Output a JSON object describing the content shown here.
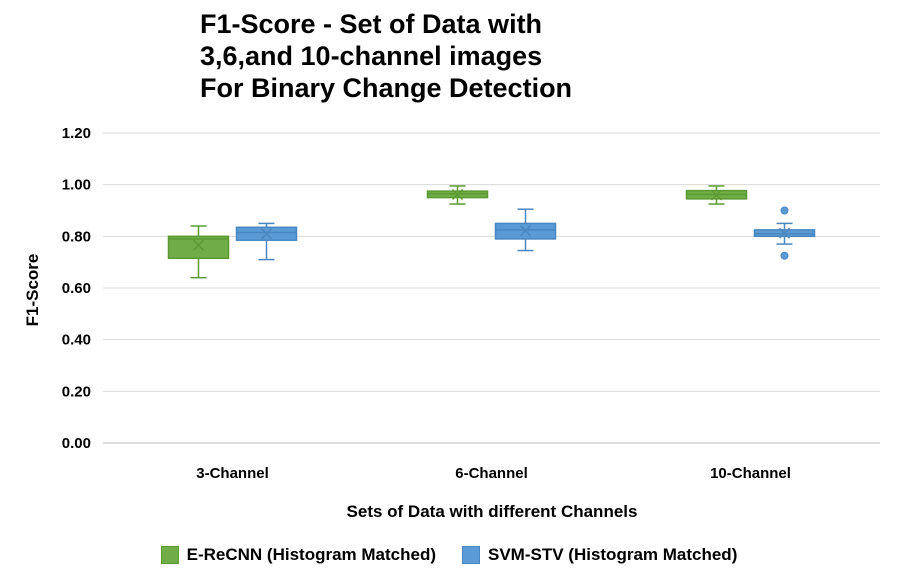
{
  "chart_data": {
    "type": "box",
    "title_lines": [
      "F1-Score - Set of Data with",
      "3,6,and 10-channel images",
      "For Binary Change Detection"
    ],
    "xlabel": "Sets of Data with different Channels",
    "ylabel": "F1-Score",
    "ylim": [
      0,
      1.2
    ],
    "yticks": [
      "0.00",
      "0.20",
      "0.40",
      "0.60",
      "0.80",
      "1.00",
      "1.20"
    ],
    "grid": true,
    "legend_position": "bottom",
    "categories": [
      "3-Channel",
      "6-Channel",
      "10-Channel"
    ],
    "series": [
      {
        "name": "E-ReCNN (Histogram Matched)",
        "fill": "#70ad47",
        "stroke": "#5b9a32",
        "boxes": [
          {
            "min": 0.64,
            "q1": 0.715,
            "median": 0.79,
            "q3": 0.8,
            "max": 0.84,
            "mean": 0.765,
            "outliers": []
          },
          {
            "min": 0.925,
            "q1": 0.95,
            "median": 0.965,
            "q3": 0.975,
            "max": 0.995,
            "mean": 0.962,
            "outliers": []
          },
          {
            "min": 0.925,
            "q1": 0.945,
            "median": 0.962,
            "q3": 0.977,
            "max": 0.995,
            "mean": 0.96,
            "outliers": []
          }
        ]
      },
      {
        "name": "SVM-STV (Histogram Matched)",
        "fill": "#5b9bd5",
        "stroke": "#4a86c0",
        "boxes": [
          {
            "min": 0.71,
            "q1": 0.785,
            "median": 0.815,
            "q3": 0.835,
            "max": 0.85,
            "mean": 0.81,
            "outliers": []
          },
          {
            "min": 0.745,
            "q1": 0.79,
            "median": 0.825,
            "q3": 0.85,
            "max": 0.905,
            "mean": 0.822,
            "outliers": []
          },
          {
            "min": 0.77,
            "q1": 0.8,
            "median": 0.81,
            "q3": 0.825,
            "max": 0.85,
            "mean": 0.812,
            "outliers": [
              0.9,
              0.725
            ]
          }
        ]
      }
    ]
  }
}
